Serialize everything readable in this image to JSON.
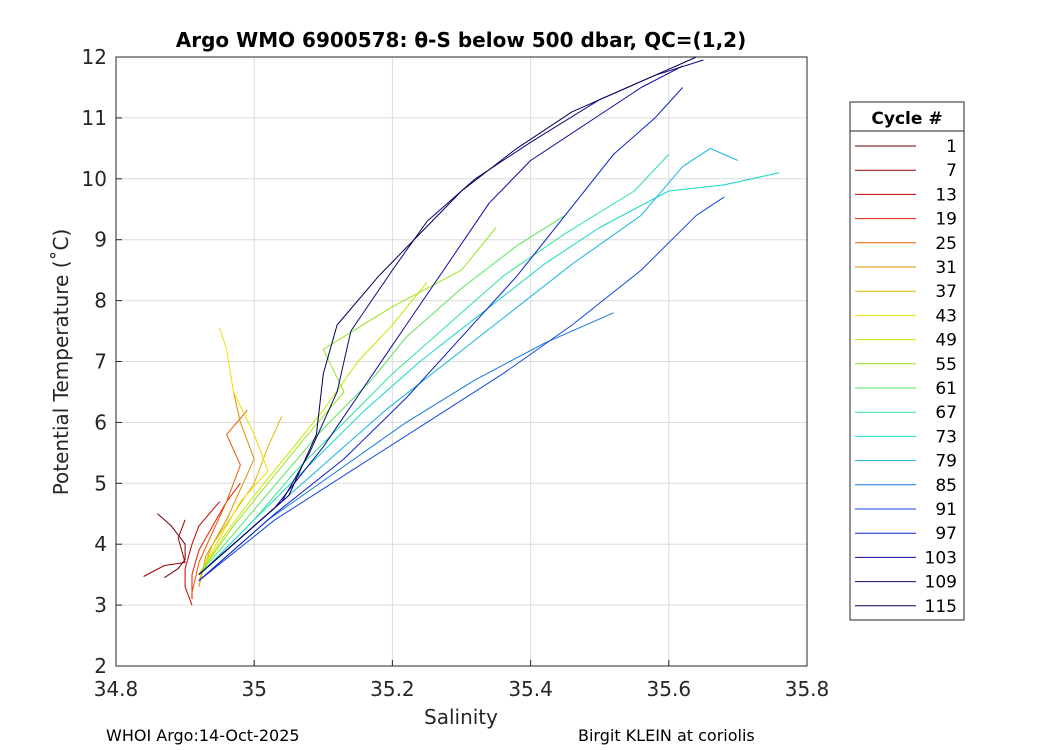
{
  "chart_data": {
    "type": "line",
    "title": "Argo WMO 6900578: θ-S below 500 dbar,  QC=(1,2)",
    "xlabel": "Salinity",
    "ylabel": "Potential Temperature (˚C)",
    "xlim": [
      34.8,
      35.8
    ],
    "ylim": [
      2,
      12
    ],
    "xticks": [
      "34.8",
      "35",
      "35.2",
      "35.4",
      "35.6",
      "35.8"
    ],
    "yticks": [
      "2",
      "3",
      "4",
      "5",
      "6",
      "7",
      "8",
      "9",
      "10",
      "11",
      "12"
    ],
    "grid": true,
    "legend": {
      "title": "Cycle #",
      "placement": "right",
      "entries": [
        "1",
        "7",
        "13",
        "19",
        "25",
        "31",
        "37",
        "43",
        "49",
        "55",
        "61",
        "67",
        "73",
        "79",
        "85",
        "91",
        "97",
        "103",
        "109",
        "115"
      ],
      "colors": [
        "#6e0000",
        "#9a0000",
        "#cc0000",
        "#e51a00",
        "#ee5a00",
        "#d98f00",
        "#e0b800",
        "#f0e000",
        "#c8e800",
        "#96e61e",
        "#5ae65a",
        "#2ee696",
        "#14d7c8",
        "#14b4e6",
        "#1478dc",
        "#1446e0",
        "#0a1ec8",
        "#0a0aa0",
        "#0a0a78",
        "#00005a"
      ]
    },
    "series": [
      {
        "name": "1",
        "values": [
          [
            34.87,
            3.45
          ],
          [
            34.89,
            3.6
          ],
          [
            34.9,
            3.75
          ],
          [
            34.9,
            4.0
          ],
          [
            34.88,
            4.3
          ],
          [
            34.86,
            4.5
          ]
        ]
      },
      {
        "name": "7",
        "values": [
          [
            34.84,
            3.47
          ],
          [
            34.87,
            3.65
          ],
          [
            34.9,
            3.7
          ],
          [
            34.89,
            4.1
          ],
          [
            34.9,
            4.4
          ]
        ]
      },
      {
        "name": "13",
        "values": [
          [
            34.91,
            3.0
          ],
          [
            34.9,
            3.3
          ],
          [
            34.9,
            3.6
          ],
          [
            34.91,
            4.0
          ],
          [
            34.92,
            4.3
          ],
          [
            34.95,
            4.7
          ]
        ]
      },
      {
        "name": "19",
        "values": [
          [
            34.91,
            3.1
          ],
          [
            34.91,
            3.5
          ],
          [
            34.92,
            3.9
          ],
          [
            34.94,
            4.3
          ],
          [
            34.96,
            4.7
          ],
          [
            34.98,
            5.0
          ]
        ]
      },
      {
        "name": "25",
        "values": [
          [
            34.91,
            3.2
          ],
          [
            34.92,
            3.7
          ],
          [
            34.94,
            4.2
          ],
          [
            34.96,
            4.7
          ],
          [
            34.98,
            5.3
          ],
          [
            34.96,
            5.8
          ],
          [
            34.99,
            6.2
          ]
        ]
      },
      {
        "name": "31",
        "values": [
          [
            34.92,
            3.3
          ],
          [
            34.93,
            3.8
          ],
          [
            34.96,
            4.4
          ],
          [
            34.98,
            4.9
          ],
          [
            35.0,
            5.4
          ],
          [
            34.98,
            6.0
          ],
          [
            34.97,
            6.5
          ]
        ]
      },
      {
        "name": "37",
        "values": [
          [
            34.92,
            3.4
          ],
          [
            34.94,
            4.0
          ],
          [
            34.97,
            4.5
          ],
          [
            35.0,
            5.0
          ],
          [
            35.02,
            5.6
          ],
          [
            35.04,
            6.1
          ]
        ]
      },
      {
        "name": "43",
        "values": [
          [
            34.92,
            3.5
          ],
          [
            34.95,
            4.1
          ],
          [
            34.98,
            4.7
          ],
          [
            35.02,
            5.2
          ],
          [
            35.0,
            5.8
          ],
          [
            34.97,
            6.5
          ],
          [
            34.96,
            7.2
          ],
          [
            34.95,
            7.55
          ]
        ]
      },
      {
        "name": "49",
        "values": [
          [
            34.92,
            3.5
          ],
          [
            34.96,
            4.2
          ],
          [
            35.0,
            4.8
          ],
          [
            35.05,
            5.5
          ],
          [
            35.1,
            6.2
          ],
          [
            35.15,
            7.0
          ],
          [
            35.2,
            7.6
          ],
          [
            35.25,
            8.3
          ]
        ]
      },
      {
        "name": "55",
        "values": [
          [
            34.92,
            3.5
          ],
          [
            34.97,
            4.3
          ],
          [
            35.02,
            5.0
          ],
          [
            35.07,
            5.7
          ],
          [
            35.13,
            6.5
          ],
          [
            35.1,
            7.2
          ],
          [
            35.2,
            7.9
          ],
          [
            35.3,
            8.5
          ],
          [
            35.35,
            9.2
          ]
        ]
      },
      {
        "name": "61",
        "values": [
          [
            34.92,
            3.5
          ],
          [
            34.98,
            4.3
          ],
          [
            35.04,
            5.1
          ],
          [
            35.1,
            5.9
          ],
          [
            35.17,
            6.7
          ],
          [
            35.22,
            7.4
          ],
          [
            35.3,
            8.2
          ],
          [
            35.38,
            8.9
          ],
          [
            35.45,
            9.4
          ]
        ]
      },
      {
        "name": "67",
        "values": [
          [
            34.93,
            3.6
          ],
          [
            35.0,
            4.4
          ],
          [
            35.06,
            5.2
          ],
          [
            35.13,
            6.0
          ],
          [
            35.2,
            6.8
          ],
          [
            35.28,
            7.6
          ],
          [
            35.36,
            8.4
          ],
          [
            35.45,
            9.1
          ],
          [
            35.55,
            9.8
          ],
          [
            35.6,
            10.4
          ]
        ]
      },
      {
        "name": "73",
        "values": [
          [
            34.93,
            3.6
          ],
          [
            35.0,
            4.4
          ],
          [
            35.08,
            5.3
          ],
          [
            35.16,
            6.2
          ],
          [
            35.24,
            7.0
          ],
          [
            35.33,
            7.8
          ],
          [
            35.42,
            8.6
          ],
          [
            35.5,
            9.2
          ],
          [
            35.6,
            9.8
          ],
          [
            35.68,
            9.9
          ],
          [
            35.76,
            10.1
          ]
        ]
      },
      {
        "name": "79",
        "values": [
          [
            34.93,
            3.6
          ],
          [
            35.02,
            4.5
          ],
          [
            35.1,
            5.3
          ],
          [
            35.19,
            6.2
          ],
          [
            35.28,
            7.0
          ],
          [
            35.37,
            7.8
          ],
          [
            35.46,
            8.6
          ],
          [
            35.56,
            9.4
          ],
          [
            35.62,
            10.2
          ],
          [
            35.66,
            10.5
          ],
          [
            35.7,
            10.3
          ]
        ]
      },
      {
        "name": "85",
        "values": [
          [
            34.92,
            3.4
          ],
          [
            35.02,
            4.4
          ],
          [
            35.12,
            5.2
          ],
          [
            35.22,
            6.0
          ],
          [
            35.32,
            6.7
          ],
          [
            35.42,
            7.3
          ],
          [
            35.52,
            7.8
          ]
        ]
      },
      {
        "name": "91",
        "values": [
          [
            34.92,
            3.4
          ],
          [
            35.03,
            4.4
          ],
          [
            35.14,
            5.2
          ],
          [
            35.25,
            6.0
          ],
          [
            35.36,
            6.8
          ],
          [
            35.46,
            7.6
          ],
          [
            35.56,
            8.5
          ],
          [
            35.64,
            9.4
          ],
          [
            35.68,
            9.7
          ]
        ]
      },
      {
        "name": "97",
        "values": [
          [
            34.92,
            3.4
          ],
          [
            35.03,
            4.5
          ],
          [
            35.13,
            5.4
          ],
          [
            35.22,
            6.4
          ],
          [
            35.3,
            7.4
          ],
          [
            35.38,
            8.4
          ],
          [
            35.45,
            9.4
          ],
          [
            35.52,
            10.4
          ],
          [
            35.58,
            11.0
          ],
          [
            35.62,
            11.5
          ]
        ]
      },
      {
        "name": "103",
        "values": [
          [
            34.92,
            3.5
          ],
          [
            35.03,
            4.6
          ],
          [
            35.1,
            5.6
          ],
          [
            35.16,
            6.6
          ],
          [
            35.22,
            7.6
          ],
          [
            35.28,
            8.6
          ],
          [
            35.34,
            9.6
          ],
          [
            35.4,
            10.3
          ],
          [
            35.48,
            10.9
          ],
          [
            35.56,
            11.5
          ],
          [
            35.62,
            11.85
          ]
        ]
      },
      {
        "name": "109",
        "values": [
          [
            34.92,
            3.5
          ],
          [
            35.04,
            4.7
          ],
          [
            35.08,
            5.5
          ],
          [
            35.12,
            6.5
          ],
          [
            35.14,
            7.5
          ],
          [
            35.2,
            8.5
          ],
          [
            35.25,
            9.3
          ],
          [
            35.32,
            10.0
          ],
          [
            35.4,
            10.6
          ],
          [
            35.5,
            11.3
          ],
          [
            35.58,
            11.7
          ],
          [
            35.65,
            11.95
          ]
        ]
      },
      {
        "name": "115",
        "values": [
          [
            34.92,
            3.5
          ],
          [
            35.05,
            4.8
          ],
          [
            35.09,
            5.8
          ],
          [
            35.1,
            6.8
          ],
          [
            35.12,
            7.6
          ],
          [
            35.18,
            8.4
          ],
          [
            35.24,
            9.1
          ],
          [
            35.3,
            9.8
          ],
          [
            35.38,
            10.5
          ],
          [
            35.46,
            11.1
          ],
          [
            35.56,
            11.6
          ],
          [
            35.64,
            12.0
          ]
        ]
      }
    ]
  },
  "footer": {
    "left": "WHOI Argo:14-Oct-2025",
    "right": "Birgit KLEIN at coriolis"
  }
}
